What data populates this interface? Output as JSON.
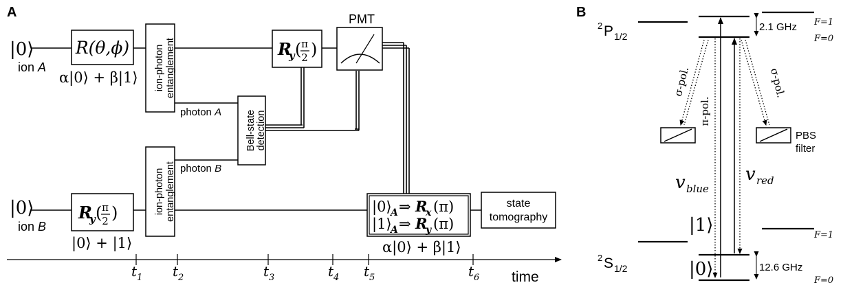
{
  "panel_a": {
    "label": "A",
    "ion_a": {
      "ket": "|0⟩",
      "name": "ion",
      "letter": "A"
    },
    "ion_b": {
      "ket": "|0⟩",
      "name": "ion",
      "letter": "B"
    },
    "gate_r": {
      "text": "R(θ,ϕ)"
    },
    "state_ab": "α|0⟩ + β|1⟩",
    "ent_line1": "ion-photon",
    "ent_line2": "entanglement",
    "photon_a": {
      "name": "photon",
      "letter": "A"
    },
    "photon_b": {
      "name": "photon",
      "letter": "B"
    },
    "bell_line1": "Bell-state",
    "bell_line2": "detection",
    "ry_a": {
      "main": "R",
      "sub": "y",
      "open": "(",
      "num": "π",
      "den": "2",
      "close": ")"
    },
    "ry_b": {
      "main": "R",
      "sub": "y",
      "open": "(",
      "num": "π",
      "den": "2",
      "close": ")"
    },
    "pmt": "PMT",
    "state_b": "|0⟩ + |1⟩",
    "cond_line1": {
      "ket": "|0⟩",
      "sub": "A",
      "arrow": "⇒",
      "op": "R",
      "opsub": "x",
      "arg": "(π)"
    },
    "cond_line2": {
      "ket": "|1⟩",
      "sub": "A",
      "arrow": "⇒",
      "op": "R",
      "opsub": "y",
      "arg": "(π)"
    },
    "state_final": "α|0⟩ + β|1⟩",
    "tomo_line1": "state",
    "tomo_line2": "tomography",
    "time_label": "time",
    "ticks": [
      {
        "t": "t",
        "sub": "1"
      },
      {
        "t": "t",
        "sub": "2"
      },
      {
        "t": "t",
        "sub": "3"
      },
      {
        "t": "t",
        "sub": "4"
      },
      {
        "t": "t",
        "sub": "5"
      },
      {
        "t": "t",
        "sub": "6"
      }
    ]
  },
  "panel_b": {
    "label": "B",
    "p_level": {
      "sup": "2",
      "base": "P",
      "sub": "1/2"
    },
    "s_level": {
      "sup": "2",
      "base": "S",
      "sub": "1/2"
    },
    "p_splitting": "2.1 GHz",
    "s_splitting": "12.6 GHz",
    "f1_top": "F=1",
    "f0_top": "F=0",
    "f1_bottom": "F=1",
    "f0_bottom": "F=0",
    "sigma_left": "σ-pol.",
    "sigma_right": "σ-pol.",
    "pi_pol": "π-pol.",
    "pbs_filter_1": "PBS",
    "pbs_filter_2": "filter",
    "nu_blue": {
      "base": "v",
      "sub": "blue"
    },
    "nu_red": {
      "base": "v",
      "sub": "red"
    },
    "ket1": "|1⟩",
    "ket0": "|0⟩"
  }
}
